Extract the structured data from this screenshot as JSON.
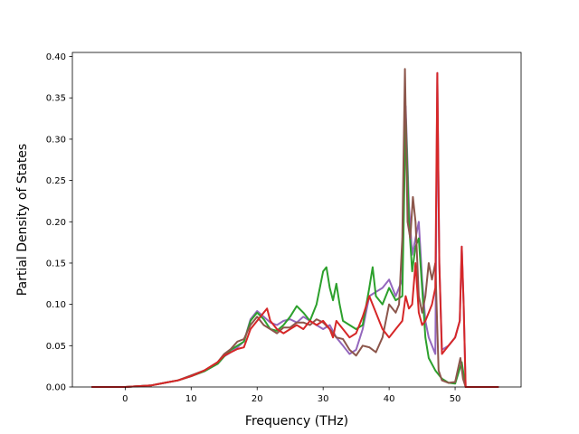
{
  "chart_data": {
    "type": "line",
    "title": "",
    "xlabel": "Frequency (THz)",
    "ylabel": "Partial Density of States",
    "xlim": [
      -8.0,
      60.0
    ],
    "ylim": [
      0.0,
      0.405
    ],
    "xticks": [
      0,
      10,
      20,
      30,
      40,
      50
    ],
    "yticks": [
      0.0,
      0.05,
      0.1,
      0.15,
      0.2,
      0.25,
      0.3,
      0.35,
      0.4
    ],
    "xtick_labels": [
      "0",
      "10",
      "20",
      "30",
      "40",
      "50"
    ],
    "ytick_labels": [
      "0.00",
      "0.05",
      "0.10",
      "0.15",
      "0.20",
      "0.25",
      "0.30",
      "0.35",
      "0.40"
    ],
    "grid": false,
    "legend": "none",
    "series": [
      {
        "color": "#9467bd",
        "points": [
          [
            -5,
            0
          ],
          [
            0,
            0
          ],
          [
            2,
            0.001
          ],
          [
            4,
            0.002
          ],
          [
            6,
            0.005
          ],
          [
            8,
            0.008
          ],
          [
            10,
            0.013
          ],
          [
            12,
            0.019
          ],
          [
            14,
            0.028
          ],
          [
            15,
            0.037
          ],
          [
            16,
            0.042
          ],
          [
            17,
            0.048
          ],
          [
            18,
            0.055
          ],
          [
            19,
            0.082
          ],
          [
            20,
            0.092
          ],
          [
            21,
            0.085
          ],
          [
            22,
            0.078
          ],
          [
            23,
            0.075
          ],
          [
            24,
            0.08
          ],
          [
            25,
            0.082
          ],
          [
            26,
            0.078
          ],
          [
            27,
            0.085
          ],
          [
            28,
            0.08
          ],
          [
            29,
            0.075
          ],
          [
            30,
            0.07
          ],
          [
            31,
            0.075
          ],
          [
            32,
            0.06
          ],
          [
            33,
            0.05
          ],
          [
            34,
            0.04
          ],
          [
            35,
            0.045
          ],
          [
            36,
            0.07
          ],
          [
            37,
            0.11
          ],
          [
            38,
            0.115
          ],
          [
            39,
            0.12
          ],
          [
            40,
            0.13
          ],
          [
            41,
            0.11
          ],
          [
            42,
            0.13
          ],
          [
            42.5,
            0.34
          ],
          [
            43,
            0.22
          ],
          [
            43.5,
            0.16
          ],
          [
            44,
            0.18
          ],
          [
            44.5,
            0.2
          ],
          [
            45,
            0.13
          ],
          [
            45.5,
            0.08
          ],
          [
            46,
            0.06
          ],
          [
            46.5,
            0.05
          ],
          [
            47,
            0.04
          ],
          [
            47.3,
            0.38
          ],
          [
            47.6,
            0.15
          ],
          [
            48,
            0.045
          ],
          [
            49,
            0.05
          ],
          [
            50,
            0.06
          ],
          [
            50.7,
            0.08
          ],
          [
            51,
            0.17
          ],
          [
            51.3,
            0.1
          ],
          [
            51.6,
            0
          ],
          [
            56.5,
            0
          ]
        ]
      },
      {
        "color": "#2ca02c",
        "points": [
          [
            -5,
            0
          ],
          [
            0,
            0
          ],
          [
            2,
            0.001
          ],
          [
            4,
            0.002
          ],
          [
            6,
            0.005
          ],
          [
            8,
            0.008
          ],
          [
            10,
            0.013
          ],
          [
            12,
            0.019
          ],
          [
            14,
            0.028
          ],
          [
            15,
            0.037
          ],
          [
            16,
            0.045
          ],
          [
            17,
            0.05
          ],
          [
            18,
            0.055
          ],
          [
            19,
            0.08
          ],
          [
            20,
            0.09
          ],
          [
            21,
            0.082
          ],
          [
            22,
            0.07
          ],
          [
            23,
            0.068
          ],
          [
            24,
            0.075
          ],
          [
            25,
            0.085
          ],
          [
            26,
            0.098
          ],
          [
            27,
            0.09
          ],
          [
            28,
            0.08
          ],
          [
            29,
            0.1
          ],
          [
            30,
            0.14
          ],
          [
            30.5,
            0.145
          ],
          [
            31,
            0.12
          ],
          [
            31.5,
            0.105
          ],
          [
            32,
            0.125
          ],
          [
            32.5,
            0.1
          ],
          [
            33,
            0.08
          ],
          [
            34,
            0.075
          ],
          [
            35,
            0.07
          ],
          [
            36,
            0.075
          ],
          [
            37,
            0.12
          ],
          [
            37.5,
            0.145
          ],
          [
            38,
            0.11
          ],
          [
            39,
            0.1
          ],
          [
            40,
            0.12
          ],
          [
            41,
            0.105
          ],
          [
            42,
            0.11
          ],
          [
            42.5,
            0.33
          ],
          [
            43,
            0.2
          ],
          [
            43.5,
            0.14
          ],
          [
            44,
            0.17
          ],
          [
            44.5,
            0.18
          ],
          [
            45,
            0.12
          ],
          [
            45.5,
            0.06
          ],
          [
            46,
            0.035
          ],
          [
            47,
            0.02
          ],
          [
            48,
            0.01
          ],
          [
            49,
            0.005
          ],
          [
            50,
            0.004
          ],
          [
            51,
            0.03
          ],
          [
            51.6,
            0
          ],
          [
            56.5,
            0
          ]
        ]
      },
      {
        "color": "#8c564b",
        "points": [
          [
            -5,
            0
          ],
          [
            0,
            0
          ],
          [
            2,
            0.001
          ],
          [
            4,
            0.002
          ],
          [
            6,
            0.005
          ],
          [
            8,
            0.008
          ],
          [
            10,
            0.014
          ],
          [
            12,
            0.02
          ],
          [
            14,
            0.03
          ],
          [
            15,
            0.04
          ],
          [
            16,
            0.046
          ],
          [
            17,
            0.055
          ],
          [
            18,
            0.058
          ],
          [
            19,
            0.075
          ],
          [
            20,
            0.085
          ],
          [
            21,
            0.075
          ],
          [
            22,
            0.07
          ],
          [
            23,
            0.065
          ],
          [
            24,
            0.072
          ],
          [
            25,
            0.072
          ],
          [
            26,
            0.078
          ],
          [
            27,
            0.078
          ],
          [
            28,
            0.075
          ],
          [
            29,
            0.082
          ],
          [
            30,
            0.078
          ],
          [
            31,
            0.07
          ],
          [
            32,
            0.06
          ],
          [
            33,
            0.058
          ],
          [
            34,
            0.045
          ],
          [
            35,
            0.038
          ],
          [
            36,
            0.05
          ],
          [
            37,
            0.048
          ],
          [
            38,
            0.042
          ],
          [
            39,
            0.06
          ],
          [
            40,
            0.1
          ],
          [
            41,
            0.09
          ],
          [
            41.5,
            0.1
          ],
          [
            42,
            0.18
          ],
          [
            42.4,
            0.385
          ],
          [
            42.8,
            0.2
          ],
          [
            43.2,
            0.18
          ],
          [
            43.6,
            0.23
          ],
          [
            44,
            0.2
          ],
          [
            44.5,
            0.11
          ],
          [
            45,
            0.09
          ],
          [
            45.5,
            0.11
          ],
          [
            46,
            0.15
          ],
          [
            46.5,
            0.13
          ],
          [
            47,
            0.15
          ],
          [
            47.5,
            0.02
          ],
          [
            48,
            0.008
          ],
          [
            49,
            0.005
          ],
          [
            50,
            0.006
          ],
          [
            50.8,
            0.035
          ],
          [
            51.2,
            0.01
          ],
          [
            51.6,
            0
          ],
          [
            56.5,
            0
          ]
        ]
      },
      {
        "color": "#d62728",
        "points": [
          [
            -5,
            0
          ],
          [
            0,
            0
          ],
          [
            2,
            0.001
          ],
          [
            4,
            0.002
          ],
          [
            6,
            0.005
          ],
          [
            8,
            0.008
          ],
          [
            10,
            0.013
          ],
          [
            12,
            0.02
          ],
          [
            14,
            0.03
          ],
          [
            15,
            0.038
          ],
          [
            16,
            0.042
          ],
          [
            17,
            0.046
          ],
          [
            18,
            0.048
          ],
          [
            19,
            0.07
          ],
          [
            20,
            0.08
          ],
          [
            20.5,
            0.085
          ],
          [
            21,
            0.09
          ],
          [
            21.5,
            0.095
          ],
          [
            22,
            0.08
          ],
          [
            23,
            0.07
          ],
          [
            24,
            0.065
          ],
          [
            25,
            0.07
          ],
          [
            26,
            0.075
          ],
          [
            27,
            0.07
          ],
          [
            28,
            0.08
          ],
          [
            29,
            0.075
          ],
          [
            30,
            0.08
          ],
          [
            31,
            0.07
          ],
          [
            31.5,
            0.06
          ],
          [
            32,
            0.08
          ],
          [
            33,
            0.07
          ],
          [
            34,
            0.06
          ],
          [
            35,
            0.065
          ],
          [
            36,
            0.085
          ],
          [
            37,
            0.11
          ],
          [
            38,
            0.09
          ],
          [
            39,
            0.07
          ],
          [
            40,
            0.06
          ],
          [
            41,
            0.07
          ],
          [
            42,
            0.08
          ],
          [
            42.5,
            0.11
          ],
          [
            43,
            0.095
          ],
          [
            43.5,
            0.1
          ],
          [
            44,
            0.15
          ],
          [
            44.5,
            0.09
          ],
          [
            45,
            0.075
          ],
          [
            45.5,
            0.08
          ],
          [
            46,
            0.09
          ],
          [
            46.5,
            0.1
          ],
          [
            47,
            0.12
          ],
          [
            47.3,
            0.38
          ],
          [
            47.6,
            0.15
          ],
          [
            48,
            0.04
          ],
          [
            49,
            0.05
          ],
          [
            50,
            0.06
          ],
          [
            50.7,
            0.08
          ],
          [
            51,
            0.17
          ],
          [
            51.3,
            0.1
          ],
          [
            51.6,
            0
          ],
          [
            56.5,
            0
          ]
        ]
      }
    ]
  }
}
